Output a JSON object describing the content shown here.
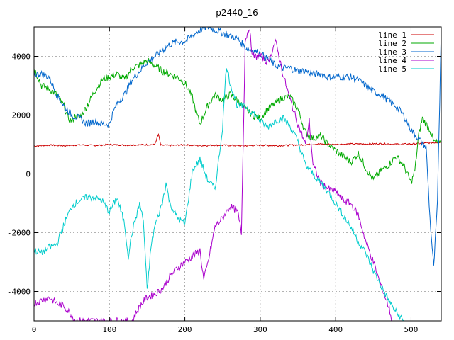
{
  "chart_data": {
    "type": "line",
    "title": "p2440_16",
    "xlabel": "",
    "ylabel": "",
    "xlim": [
      0,
      540
    ],
    "ylim": [
      -5000,
      5000
    ],
    "xticks": [
      0,
      100,
      200,
      300,
      400,
      500
    ],
    "yticks": [
      -4000,
      -2000,
      0,
      2000,
      4000
    ],
    "xtick_labels": [
      "0",
      "100",
      "200",
      "300",
      "400",
      "500"
    ],
    "ytick_labels": [
      "-4000",
      "-2000",
      "0",
      "2000",
      "4000"
    ],
    "grid": true,
    "legend": "top-right",
    "series": [
      {
        "name": "line 1",
        "color": "#cc0000",
        "points": [
          [
            0,
            950
          ],
          [
            20,
            980
          ],
          [
            40,
            960
          ],
          [
            60,
            990
          ],
          [
            80,
            970
          ],
          [
            100,
            1000
          ],
          [
            120,
            980
          ],
          [
            140,
            990
          ],
          [
            160,
            1000
          ],
          [
            165,
            1350
          ],
          [
            168,
            980
          ],
          [
            180,
            970
          ],
          [
            200,
            990
          ],
          [
            220,
            960
          ],
          [
            240,
            980
          ],
          [
            260,
            970
          ],
          [
            280,
            960
          ],
          [
            300,
            980
          ],
          [
            320,
            960
          ],
          [
            340,
            980
          ],
          [
            360,
            1000
          ],
          [
            380,
            1020
          ],
          [
            400,
            1000
          ],
          [
            420,
            1020
          ],
          [
            440,
            1020
          ],
          [
            460,
            1030
          ],
          [
            480,
            1010
          ],
          [
            500,
            1020
          ],
          [
            520,
            1050
          ],
          [
            540,
            1080
          ]
        ]
      },
      {
        "name": "line 2",
        "color": "#00aa00",
        "points": [
          [
            0,
            3600
          ],
          [
            10,
            3000
          ],
          [
            20,
            2900
          ],
          [
            30,
            2700
          ],
          [
            40,
            2300
          ],
          [
            45,
            1900
          ],
          [
            50,
            1800
          ],
          [
            55,
            2000
          ],
          [
            60,
            1900
          ],
          [
            70,
            2300
          ],
          [
            80,
            2800
          ],
          [
            90,
            3200
          ],
          [
            100,
            3300
          ],
          [
            110,
            3400
          ],
          [
            120,
            3200
          ],
          [
            130,
            3600
          ],
          [
            140,
            3700
          ],
          [
            150,
            3850
          ],
          [
            160,
            3700
          ],
          [
            170,
            3500
          ],
          [
            180,
            3400
          ],
          [
            190,
            3300
          ],
          [
            200,
            3100
          ],
          [
            210,
            2600
          ],
          [
            215,
            2100
          ],
          [
            220,
            1700
          ],
          [
            225,
            2000
          ],
          [
            230,
            2300
          ],
          [
            240,
            2700
          ],
          [
            250,
            2500
          ],
          [
            260,
            2700
          ],
          [
            270,
            2500
          ],
          [
            280,
            2200
          ],
          [
            290,
            2000
          ],
          [
            300,
            1900
          ],
          [
            310,
            2200
          ],
          [
            320,
            2400
          ],
          [
            330,
            2600
          ],
          [
            340,
            2600
          ],
          [
            350,
            2200
          ],
          [
            360,
            1400
          ],
          [
            370,
            1200
          ],
          [
            380,
            1300
          ],
          [
            390,
            1000
          ],
          [
            400,
            800
          ],
          [
            410,
            600
          ],
          [
            420,
            400
          ],
          [
            430,
            700
          ],
          [
            440,
            200
          ],
          [
            450,
            -200
          ],
          [
            460,
            100
          ],
          [
            470,
            300
          ],
          [
            480,
            600
          ],
          [
            490,
            300
          ],
          [
            500,
            -300
          ],
          [
            505,
            100
          ],
          [
            510,
            1300
          ],
          [
            515,
            1900
          ],
          [
            520,
            1700
          ],
          [
            525,
            1500
          ],
          [
            530,
            1100
          ],
          [
            540,
            1000
          ]
        ]
      },
      {
        "name": "line 3",
        "color": "#0066cc",
        "points": [
          [
            0,
            3400
          ],
          [
            10,
            3400
          ],
          [
            20,
            3300
          ],
          [
            30,
            2700
          ],
          [
            40,
            2300
          ],
          [
            50,
            2000
          ],
          [
            60,
            1900
          ],
          [
            70,
            1700
          ],
          [
            80,
            1800
          ],
          [
            90,
            1700
          ],
          [
            100,
            1700
          ],
          [
            105,
            2100
          ],
          [
            110,
            2400
          ],
          [
            120,
            2700
          ],
          [
            130,
            3200
          ],
          [
            140,
            3500
          ],
          [
            150,
            3800
          ],
          [
            160,
            4000
          ],
          [
            170,
            4200
          ],
          [
            180,
            4400
          ],
          [
            190,
            4500
          ],
          [
            200,
            4500
          ],
          [
            210,
            4700
          ],
          [
            220,
            4900
          ],
          [
            230,
            5000
          ],
          [
            240,
            4900
          ],
          [
            250,
            4800
          ],
          [
            260,
            4700
          ],
          [
            270,
            4600
          ],
          [
            280,
            4300
          ],
          [
            290,
            4200
          ],
          [
            300,
            4100
          ],
          [
            310,
            3900
          ],
          [
            320,
            3700
          ],
          [
            330,
            3600
          ],
          [
            340,
            3600
          ],
          [
            350,
            3500
          ],
          [
            360,
            3500
          ],
          [
            370,
            3400
          ],
          [
            380,
            3400
          ],
          [
            390,
            3300
          ],
          [
            400,
            3300
          ],
          [
            410,
            3300
          ],
          [
            420,
            3300
          ],
          [
            430,
            3200
          ],
          [
            440,
            3000
          ],
          [
            450,
            2800
          ],
          [
            460,
            2700
          ],
          [
            470,
            2500
          ],
          [
            480,
            2300
          ],
          [
            490,
            2000
          ],
          [
            500,
            1500
          ],
          [
            510,
            1200
          ],
          [
            520,
            900
          ],
          [
            525,
            -1500
          ],
          [
            530,
            -3200
          ],
          [
            535,
            -1000
          ],
          [
            538,
            2500
          ],
          [
            540,
            5000
          ]
        ]
      },
      {
        "name": "line 4",
        "color": "#aa00cc",
        "points": [
          [
            0,
            -4400
          ],
          [
            10,
            -4300
          ],
          [
            20,
            -4200
          ],
          [
            30,
            -4400
          ],
          [
            40,
            -4500
          ],
          [
            50,
            -4800
          ],
          [
            55,
            -5000
          ],
          [
            130,
            -5000
          ],
          [
            140,
            -4500
          ],
          [
            150,
            -4200
          ],
          [
            160,
            -4100
          ],
          [
            170,
            -3900
          ],
          [
            180,
            -3500
          ],
          [
            190,
            -3200
          ],
          [
            200,
            -3000
          ],
          [
            210,
            -2800
          ],
          [
            220,
            -2600
          ],
          [
            225,
            -3600
          ],
          [
            230,
            -3100
          ],
          [
            240,
            -1800
          ],
          [
            250,
            -1500
          ],
          [
            260,
            -1100
          ],
          [
            270,
            -1300
          ],
          [
            275,
            -2000
          ],
          [
            280,
            4500
          ],
          [
            285,
            5000
          ],
          [
            290,
            4000
          ],
          [
            300,
            4000
          ],
          [
            310,
            3800
          ],
          [
            320,
            4500
          ],
          [
            325,
            4000
          ],
          [
            330,
            3400
          ],
          [
            340,
            2500
          ],
          [
            350,
            1700
          ],
          [
            360,
            1000
          ],
          [
            365,
            1800
          ],
          [
            370,
            300
          ],
          [
            380,
            -300
          ],
          [
            390,
            -500
          ],
          [
            400,
            -600
          ],
          [
            410,
            -900
          ],
          [
            420,
            -1000
          ],
          [
            430,
            -1400
          ],
          [
            440,
            -2300
          ],
          [
            450,
            -3000
          ],
          [
            460,
            -3800
          ],
          [
            470,
            -4500
          ],
          [
            475,
            -5000
          ]
        ]
      },
      {
        "name": "line 5",
        "color": "#00cccc",
        "points": [
          [
            0,
            -2600
          ],
          [
            10,
            -2700
          ],
          [
            20,
            -2500
          ],
          [
            30,
            -2400
          ],
          [
            40,
            -1700
          ],
          [
            50,
            -1100
          ],
          [
            60,
            -900
          ],
          [
            70,
            -800
          ],
          [
            80,
            -800
          ],
          [
            90,
            -900
          ],
          [
            100,
            -1300
          ],
          [
            110,
            -800
          ],
          [
            120,
            -1700
          ],
          [
            125,
            -2800
          ],
          [
            130,
            -2000
          ],
          [
            140,
            -1000
          ],
          [
            145,
            -1600
          ],
          [
            150,
            -4000
          ],
          [
            155,
            -2500
          ],
          [
            160,
            -1800
          ],
          [
            170,
            -1000
          ],
          [
            175,
            -300
          ],
          [
            180,
            -1000
          ],
          [
            190,
            -1500
          ],
          [
            200,
            -1700
          ],
          [
            210,
            100
          ],
          [
            220,
            500
          ],
          [
            230,
            -200
          ],
          [
            240,
            -500
          ],
          [
            245,
            500
          ],
          [
            250,
            1600
          ],
          [
            255,
            3700
          ],
          [
            260,
            3100
          ],
          [
            270,
            2300
          ],
          [
            280,
            2300
          ],
          [
            290,
            2100
          ],
          [
            300,
            1800
          ],
          [
            310,
            1600
          ],
          [
            320,
            1800
          ],
          [
            330,
            1900
          ],
          [
            340,
            1600
          ],
          [
            350,
            1100
          ],
          [
            360,
            300
          ],
          [
            370,
            0
          ],
          [
            380,
            -300
          ],
          [
            390,
            -600
          ],
          [
            400,
            -1000
          ],
          [
            410,
            -1400
          ],
          [
            420,
            -1800
          ],
          [
            430,
            -2300
          ],
          [
            440,
            -2700
          ],
          [
            450,
            -3300
          ],
          [
            460,
            -3800
          ],
          [
            470,
            -4300
          ],
          [
            480,
            -4700
          ],
          [
            490,
            -5000
          ]
        ]
      }
    ]
  }
}
